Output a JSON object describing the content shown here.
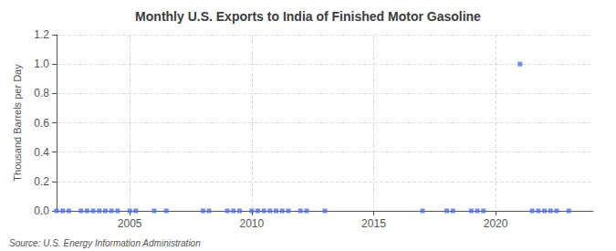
{
  "chart_data": {
    "type": "scatter",
    "title": "Monthly U.S. Exports to India of Finished Motor Gasoline",
    "ylabel": "Thousand Barrels per Day",
    "annotations": [
      "Source: U.S. Energy Information Administration"
    ],
    "x": [
      2002.0,
      2002.25,
      2002.5,
      2003.0,
      2003.25,
      2003.5,
      2003.75,
      2004.0,
      2004.25,
      2004.5,
      2005.0,
      2005.25,
      2006.0,
      2006.5,
      2008.0,
      2008.25,
      2009.0,
      2009.25,
      2009.5,
      2010.0,
      2010.25,
      2010.5,
      2010.75,
      2011.0,
      2011.25,
      2011.5,
      2012.0,
      2012.25,
      2013.0,
      2017.0,
      2018.0,
      2018.25,
      2019.0,
      2019.25,
      2019.5,
      2021.0,
      2021.5,
      2021.75,
      2022.0,
      2022.25,
      2022.5,
      2023.0
    ],
    "values": [
      0.0,
      0.0,
      0.0,
      0.0,
      0.0,
      0.0,
      0.0,
      0.0,
      0.0,
      0.0,
      0.0,
      0.0,
      0.0,
      0.0,
      0.0,
      0.0,
      0.0,
      0.0,
      0.0,
      0.0,
      0.0,
      0.0,
      0.0,
      0.0,
      0.0,
      0.0,
      0.0,
      0.0,
      0.0,
      0.0,
      0.0,
      0.0,
      0.0,
      0.0,
      0.0,
      1.0,
      0.0,
      0.0,
      0.0,
      0.0,
      0.0,
      0.0
    ],
    "xlim": [
      2002.0,
      2024.0
    ],
    "xticks": [
      2005,
      2010,
      2015,
      2020
    ],
    "ylim": [
      0.0,
      1.2
    ],
    "yticks": [
      {
        "value": 0.0,
        "label": "0.0"
      },
      0.2,
      0.4,
      0.6,
      0.8,
      {
        "value": 1.0,
        "label": "1.0"
      },
      1.2
    ],
    "marker": "square",
    "grid": true
  }
}
